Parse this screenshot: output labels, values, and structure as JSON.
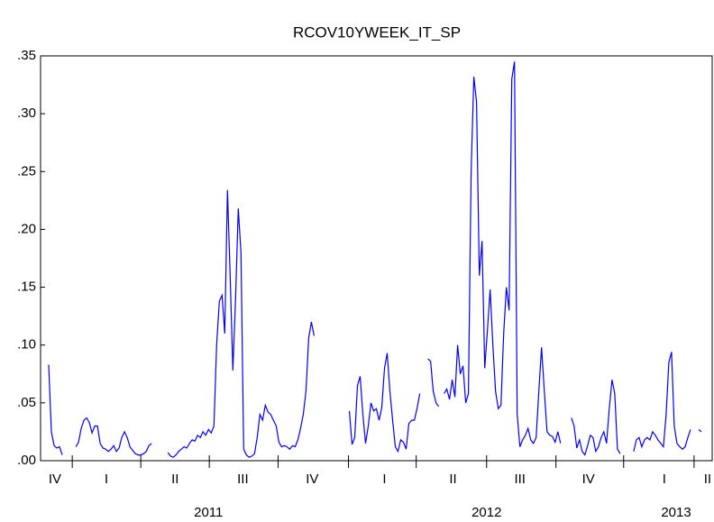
{
  "chart_data": {
    "type": "line",
    "title": "RCOV10YWEEK_IT_SP",
    "color": "#0000ff",
    "values": [
      0.083,
      0.025,
      0.013,
      0.011,
      0.012,
      0.005,
      null,
      null,
      null,
      null,
      0.012,
      0.016,
      0.028,
      0.035,
      0.037,
      0.033,
      0.024,
      0.03,
      0.03,
      0.015,
      0.011,
      0.01,
      0.008,
      0.01,
      0.013,
      0.008,
      0.011,
      0.02,
      0.025,
      0.02,
      0.012,
      0.009,
      0.006,
      0.005,
      0.005,
      0.006,
      0.008,
      0.013,
      0.015,
      null,
      null,
      null,
      null,
      null,
      0.007,
      0.004,
      0.003,
      0.005,
      0.008,
      0.01,
      0.012,
      0.011,
      0.015,
      0.018,
      0.017,
      0.022,
      0.02,
      0.025,
      0.022,
      0.027,
      0.024,
      0.03,
      0.1,
      0.138,
      0.143,
      0.11,
      0.234,
      0.16,
      0.078,
      0.14,
      0.218,
      0.18,
      0.01,
      0.005,
      0.003,
      0.004,
      0.006,
      0.02,
      0.04,
      0.035,
      0.048,
      0.042,
      0.04,
      0.035,
      0.03,
      0.016,
      0.012,
      0.013,
      0.012,
      0.01,
      0.013,
      0.012,
      0.018,
      0.028,
      0.04,
      0.06,
      0.106,
      0.12,
      0.108,
      null,
      null,
      null,
      null,
      null,
      null,
      null,
      null,
      null,
      null,
      null,
      null,
      0.043,
      0.014,
      0.02,
      0.065,
      0.073,
      0.04,
      0.015,
      0.03,
      0.05,
      0.043,
      0.045,
      0.035,
      0.046,
      0.08,
      0.093,
      0.06,
      0.035,
      0.012,
      0.008,
      0.018,
      0.016,
      0.01,
      0.032,
      0.035,
      0.035,
      0.045,
      0.058,
      null,
      null,
      0.088,
      0.086,
      0.06,
      0.05,
      0.047,
      null,
      0.058,
      0.062,
      0.053,
      0.07,
      0.055,
      0.1,
      0.075,
      0.082,
      0.05,
      0.058,
      0.25,
      0.332,
      0.31,
      0.16,
      0.19,
      0.08,
      0.113,
      0.148,
      0.1,
      0.06,
      0.045,
      0.048,
      0.11,
      0.15,
      0.13,
      0.33,
      0.345,
      0.04,
      0.012,
      0.018,
      0.022,
      0.028,
      0.018,
      0.015,
      0.02,
      0.06,
      0.098,
      0.06,
      0.025,
      0.022,
      0.021,
      0.016,
      0.025,
      0.015,
      null,
      null,
      null,
      0.037,
      0.03,
      0.011,
      0.018,
      0.008,
      0.005,
      0.013,
      0.022,
      0.02,
      0.008,
      0.012,
      0.02,
      0.025,
      0.015,
      0.045,
      0.07,
      0.058,
      0.01,
      0.006,
      null,
      null,
      null,
      null,
      0.008,
      0.018,
      0.02,
      0.012,
      0.018,
      0.02,
      0.018,
      0.025,
      0.022,
      0.018,
      0.015,
      0.012,
      0.04,
      0.085,
      0.094,
      0.03,
      0.015,
      0.012,
      0.01,
      0.012,
      0.02,
      0.027,
      null,
      null,
      0.027,
      0.025
    ],
    "xlim": [
      -3,
      245
    ],
    "xticks": [
      8.7,
      34,
      59.3,
      84.7,
      110.7,
      135.7,
      161.7,
      187.3,
      212.3,
      238.3
    ],
    "quarter_labels": [
      {
        "value": 2.3,
        "label": "IV"
      },
      {
        "value": 21.3,
        "label": "I"
      },
      {
        "value": 46.7,
        "label": "II"
      },
      {
        "value": 71.7,
        "label": "III"
      },
      {
        "value": 97.3,
        "label": "IV"
      },
      {
        "value": 124,
        "label": "I"
      },
      {
        "value": 149.3,
        "label": "II"
      },
      {
        "value": 174,
        "label": "III"
      },
      {
        "value": 199.3,
        "label": "IV"
      },
      {
        "value": 227.3,
        "label": "I"
      },
      {
        "value": 243.3,
        "label": "II"
      }
    ],
    "year_labels": [
      {
        "value": 59,
        "label": "2011"
      },
      {
        "value": 161.7,
        "label": "2012"
      },
      {
        "value": 231.7,
        "label": "2013"
      }
    ],
    "ylim": [
      0,
      0.35
    ],
    "yticks": [
      {
        "value": 0,
        "label": ".00"
      },
      {
        "value": 0.05,
        "label": ".05"
      },
      {
        "value": 0.1,
        "label": ".10"
      },
      {
        "value": 0.15,
        "label": ".15"
      },
      {
        "value": 0.2,
        "label": ".20"
      },
      {
        "value": 0.25,
        "label": ".25"
      },
      {
        "value": 0.3,
        "label": ".30"
      },
      {
        "value": 0.35,
        "label": ".35"
      }
    ]
  }
}
